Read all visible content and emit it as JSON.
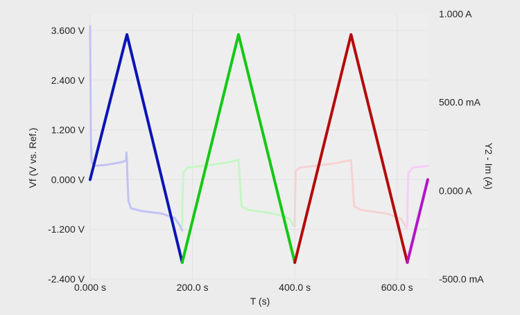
{
  "chart_data": {
    "type": "line",
    "x_axis": {
      "label": "T (s)",
      "range": [
        0,
        660
      ],
      "ticks": [
        {
          "value": 0,
          "label": "0.000 s"
        },
        {
          "value": 200,
          "label": "200.0 s"
        },
        {
          "value": 400,
          "label": "400.0 s"
        },
        {
          "value": 600,
          "label": "600.0 s"
        }
      ]
    },
    "y_axis_left": {
      "label": "Vf (V vs. Ref.)",
      "range": [
        -2.4,
        4.0
      ],
      "ticks": [
        {
          "value": 3.6,
          "label": "3.600 V"
        },
        {
          "value": 2.4,
          "label": "2.400 V"
        },
        {
          "value": 1.2,
          "label": "1.200 V"
        },
        {
          "value": 0.0,
          "label": "0.000 V"
        },
        {
          "value": -1.2,
          "label": "-1.200 V"
        },
        {
          "value": -2.4,
          "label": "-2.400 V"
        }
      ]
    },
    "y_axis_right": {
      "label": "Y2 - Im (A)",
      "range": [
        -0.5,
        1.0
      ],
      "ticks": [
        {
          "value": 1.0,
          "label": "1.000 A"
        },
        {
          "value": 0.5,
          "label": "500.0 mA"
        },
        {
          "value": 0.0,
          "label": "0.000 A"
        },
        {
          "value": -0.5,
          "label": "-500.0 mA"
        }
      ]
    },
    "grid": true,
    "legend": "none",
    "series": [
      {
        "axis": "left",
        "color": "#0a14b4",
        "points": [
          [
            0,
            0.0
          ],
          [
            72,
            3.5
          ],
          [
            180,
            -2.0
          ]
        ]
      },
      {
        "axis": "left",
        "color": "#14c814",
        "points": [
          [
            180,
            -2.0
          ],
          [
            290,
            3.5
          ],
          [
            400,
            -2.0
          ]
        ]
      },
      {
        "axis": "left",
        "color": "#b40a0a",
        "points": [
          [
            400,
            -2.0
          ],
          [
            510,
            3.5
          ],
          [
            620,
            -2.0
          ]
        ]
      },
      {
        "axis": "left",
        "color": "#b414c8",
        "points": [
          [
            620,
            -2.0
          ],
          [
            660,
            0.0
          ]
        ]
      },
      {
        "axis": "right",
        "color": "#c2c2f6",
        "points": [
          [
            0,
            0.93
          ],
          [
            0.5,
            0.7
          ],
          [
            1.5,
            0.3
          ],
          [
            3,
            0.16
          ],
          [
            8,
            0.14
          ],
          [
            30,
            0.145
          ],
          [
            60,
            0.16
          ],
          [
            70,
            0.17
          ],
          [
            71,
            0.215
          ],
          [
            72,
            0.175
          ],
          [
            73,
            0.06
          ],
          [
            75,
            -0.06
          ],
          [
            80,
            -0.1
          ],
          [
            100,
            -0.115
          ],
          [
            140,
            -0.13
          ],
          [
            165,
            -0.155
          ],
          [
            175,
            -0.195
          ],
          [
            180,
            -0.225
          ]
        ]
      },
      {
        "axis": "right",
        "color": "#c6f6c6",
        "points": [
          [
            180,
            -0.2
          ],
          [
            180.5,
            -0.08
          ],
          [
            182,
            0.1
          ],
          [
            190,
            0.13
          ],
          [
            220,
            0.14
          ],
          [
            260,
            0.155
          ],
          [
            285,
            0.17
          ],
          [
            290,
            0.175
          ],
          [
            293,
            0.05
          ],
          [
            296,
            -0.09
          ],
          [
            310,
            -0.11
          ],
          [
            360,
            -0.13
          ],
          [
            390,
            -0.16
          ],
          [
            398,
            -0.2
          ]
        ]
      },
      {
        "axis": "right",
        "color": "#f6d2d2",
        "points": [
          [
            400,
            -0.2
          ],
          [
            400.5,
            -0.05
          ],
          [
            402,
            0.11
          ],
          [
            410,
            0.13
          ],
          [
            440,
            0.14
          ],
          [
            480,
            0.155
          ],
          [
            505,
            0.17
          ],
          [
            510,
            0.17
          ],
          [
            513,
            0.05
          ],
          [
            516,
            -0.09
          ],
          [
            530,
            -0.11
          ],
          [
            580,
            -0.13
          ],
          [
            608,
            -0.16
          ],
          [
            618,
            -0.21
          ]
        ]
      },
      {
        "axis": "right",
        "color": "#f6cef6",
        "points": [
          [
            620,
            -0.2
          ],
          [
            620.5,
            -0.05
          ],
          [
            622,
            0.1
          ],
          [
            630,
            0.13
          ],
          [
            660,
            0.14
          ]
        ]
      }
    ]
  }
}
